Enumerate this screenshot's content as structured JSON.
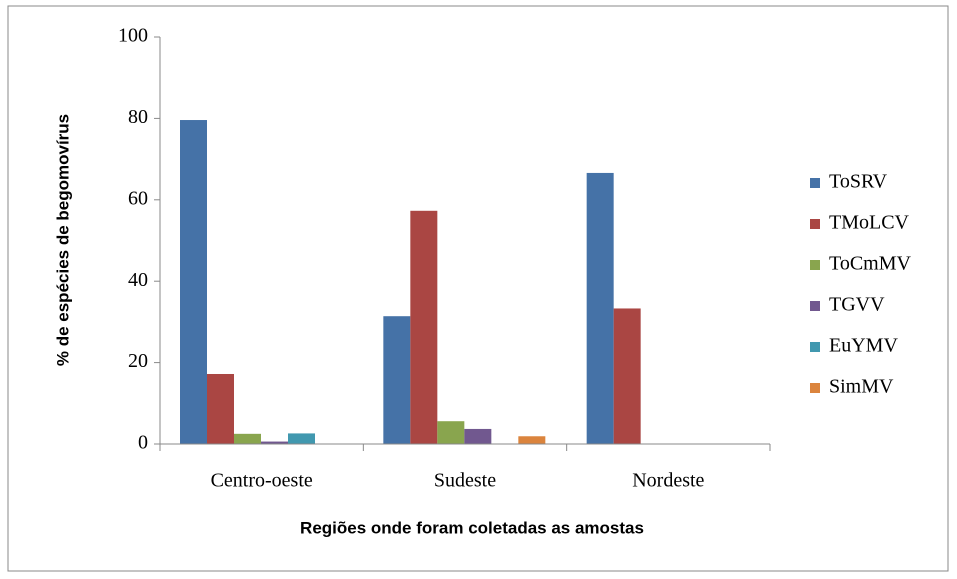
{
  "chart_data": {
    "type": "bar",
    "ylabel": "% de espécies de begomovírus",
    "xlabel": "Regiões onde foram coletadas as amostas",
    "categories": [
      "Centro-oeste",
      "Sudeste",
      "Nordeste"
    ],
    "series": [
      {
        "name": "ToSRV",
        "color": "#4572A7",
        "values": [
          79.6,
          31.4,
          66.6
        ]
      },
      {
        "name": "TMoLCV",
        "color": "#AA4643",
        "values": [
          17.2,
          57.3,
          33.3
        ]
      },
      {
        "name": "ToCmMV",
        "color": "#89A54E",
        "values": [
          2.5,
          5.6,
          0
        ]
      },
      {
        "name": "TGVV",
        "color": "#71588F",
        "values": [
          0.6,
          3.7,
          0
        ]
      },
      {
        "name": "EuYMV",
        "color": "#4198AF",
        "values": [
          2.6,
          0,
          0
        ]
      },
      {
        "name": "SimMV",
        "color": "#DB843D",
        "values": [
          0,
          1.9,
          0
        ]
      }
    ],
    "ylim": [
      0,
      100
    ],
    "yticks": [
      0,
      20,
      40,
      60,
      80,
      100
    ],
    "grid": false,
    "legend": "right"
  }
}
